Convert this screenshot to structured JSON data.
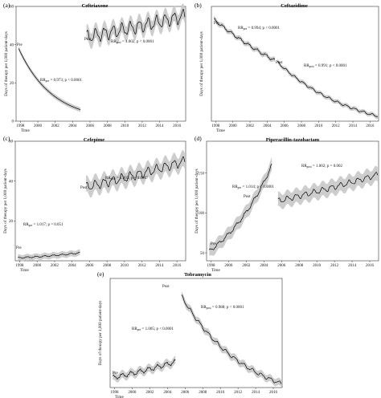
{
  "figure": {
    "x_axis_label": "Time",
    "y_axis_label": "Days of therapy per 1,000 patient-days",
    "x_ticks": [
      "1998",
      "2000",
      "2002",
      "2004",
      "2006",
      "2008",
      "2010",
      "2012",
      "2014",
      "2016"
    ],
    "colors": {
      "line": "#000000",
      "band": "#c8c8c8",
      "axis": "#333333"
    }
  },
  "chart_data": [
    {
      "panel_label": "(a)",
      "title": "Ceftriaxone",
      "type": "line",
      "xlabel": "Time",
      "ylabel": "Days of therapy per 1,000 patient-days",
      "xlim": [
        1997.5,
        2017
      ],
      "ylim": [
        0,
        60
      ],
      "y_ticks": [
        "0",
        "20",
        "40",
        "60"
      ],
      "pre": {
        "label": "Pre",
        "x_start": 1997.8,
        "x_end": 2004.9,
        "y_start": 38,
        "y_end": 6,
        "rr_text": "RRpre = 0.973; p < 0.0001",
        "band_half_width": 1.2,
        "seasonal_amplitude": 0
      },
      "post": {
        "label": "Post",
        "x_start": 2005.6,
        "x_end": 2016.9,
        "y_start": 44,
        "y_end": 55,
        "rr_text": "RRpost = 1.002; p < 0.0001",
        "band_half_width": 4,
        "seasonal_amplitude": 3
      }
    },
    {
      "panel_label": "(b)",
      "title": "Ceftazidime",
      "type": "line",
      "xlabel": "Time",
      "ylabel": "Days of therapy per 1,000 patient-days",
      "xlim": [
        1997.5,
        2017
      ],
      "ylim": [
        10,
        80
      ],
      "y_ticks": [],
      "pre": {
        "label": "Pre",
        "x_start": 1997.8,
        "x_end": 2004.9,
        "y_start": 72,
        "y_end": 47,
        "rr_text": "RRpre = 0.994; p < 0.0001",
        "band_half_width": 1.5,
        "seasonal_amplitude": 0.8
      },
      "post": {
        "label": "Post",
        "x_start": 2005.2,
        "x_end": 2016.9,
        "y_start": 46,
        "y_end": 13,
        "rr_text": "RRpost = 0.991; p < 0.0001",
        "band_half_width": 1.3,
        "seasonal_amplitude": 0.6
      }
    },
    {
      "panel_label": "(c)",
      "title": "Cefepime",
      "type": "line",
      "xlabel": "Time",
      "ylabel": "Days of therapy per 1,000 patient-days",
      "xlim": [
        1997.5,
        2017
      ],
      "ylim": [
        0,
        60
      ],
      "y_ticks": [
        "20",
        "40",
        "60"
      ],
      "pre": {
        "label": "Pre",
        "x_start": 1997.8,
        "x_end": 2004.9,
        "y_start": 1.5,
        "y_end": 4,
        "rr_text": "RRpre = 1.017; p = 0.051",
        "band_half_width": 1.5,
        "seasonal_amplitude": 0.3
      },
      "post": {
        "label": "Post",
        "x_start": 2005.6,
        "x_end": 2016.9,
        "y_start": 37,
        "y_end": 50,
        "rr_text": "RRpost = 1.003; p = 0.0007",
        "band_half_width": 4,
        "seasonal_amplitude": 2
      }
    },
    {
      "panel_label": "(d)",
      "title": "Piperacillin-tazobactam",
      "type": "line",
      "xlabel": "Time",
      "ylabel": "Days of therapy per 1,000 patient-days",
      "xlim": [
        1997.5,
        2017
      ],
      "ylim": [
        40,
        190
      ],
      "y_ticks": [
        "50",
        "100",
        "150"
      ],
      "pre": {
        "label": "Pre",
        "x_start": 1997.8,
        "x_end": 2004.9,
        "y_start": 52,
        "y_end": 160,
        "rr_text": "RRpre = 1.014; p < 0.0001",
        "band_half_width": 8,
        "seasonal_amplitude": 2
      },
      "post": {
        "label": "Post",
        "x_start": 2005.6,
        "x_end": 2016.9,
        "y_start": 115,
        "y_end": 148,
        "rr_text": "RRpost = 1.002; p = 0.002",
        "band_half_width": 9,
        "seasonal_amplitude": 3
      }
    },
    {
      "panel_label": "(e)",
      "title": "Tobramycin",
      "type": "line",
      "xlabel": "Time",
      "ylabel": "Days of therapy per 1,000 patient-days",
      "xlim": [
        1997.5,
        2017
      ],
      "ylim": [
        10,
        65
      ],
      "y_ticks": [],
      "pre": {
        "label": "Pre",
        "x_start": 1997.8,
        "x_end": 2004.9,
        "y_start": 15,
        "y_end": 23,
        "rr_text": "RRpre = 1.005; p < 0.0001",
        "band_half_width": 2,
        "seasonal_amplitude": 1
      },
      "post": {
        "label": "Post",
        "x_start": 2005.6,
        "x_end": 2016.9,
        "y_start": 56,
        "y_end": 12,
        "rr_text": "RRpost = 0.988; p < 0.0001",
        "band_half_width": 1.8,
        "seasonal_amplitude": 0.8
      }
    }
  ]
}
